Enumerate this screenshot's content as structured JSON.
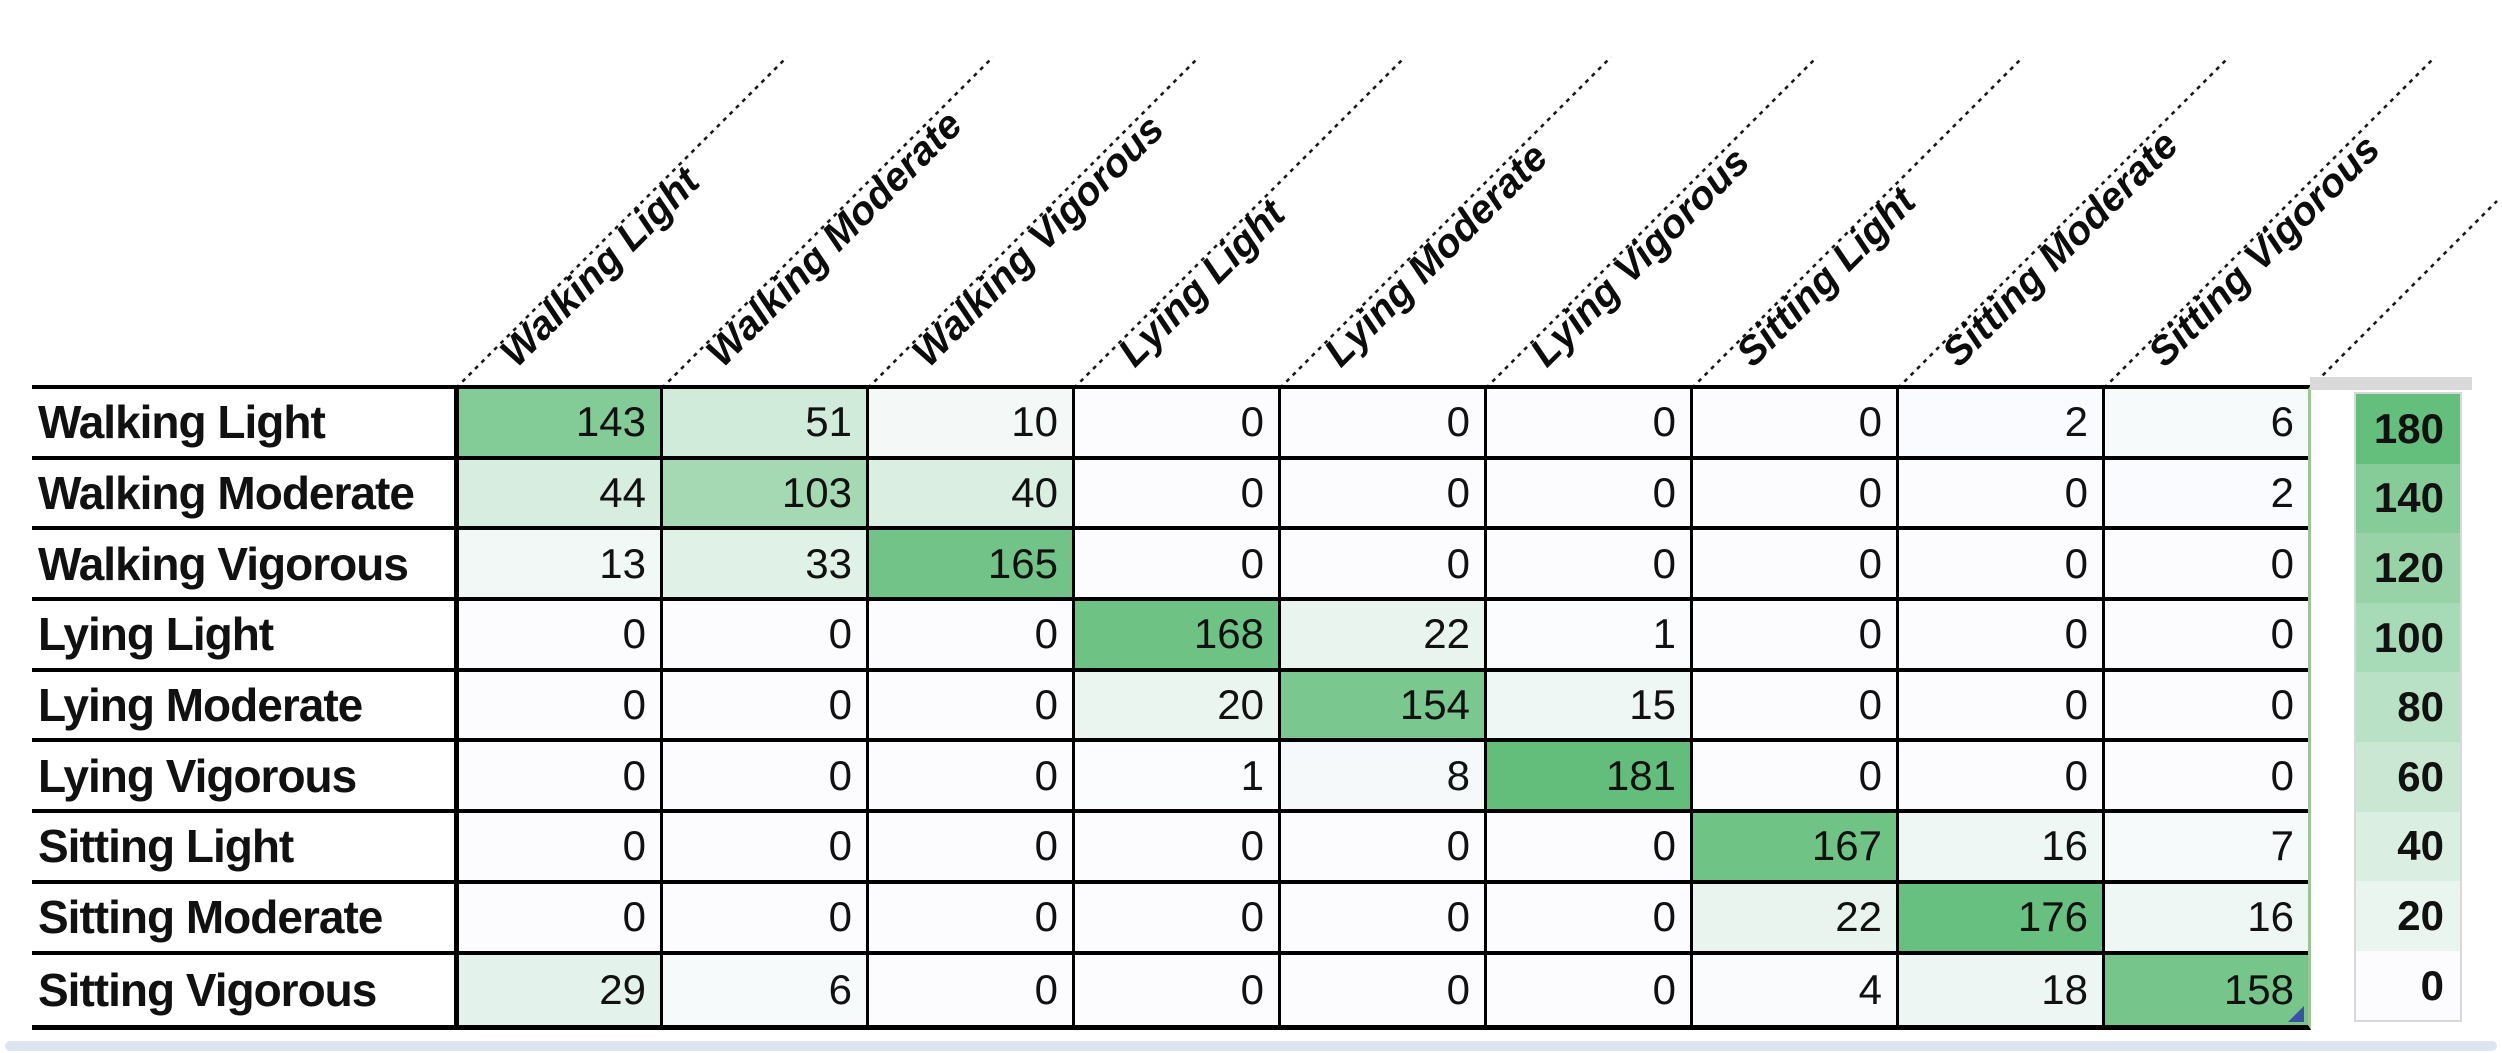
{
  "chart_data": {
    "type": "heatmap",
    "title": "",
    "x_categories": [
      "Walking Light",
      "Walking Moderate",
      "Walking Vigorous",
      "Lying Light",
      "Lying Moderate",
      "Lying Vigorous",
      "Sitting Light",
      "Sitting Moderate",
      "Sitting Vigorous"
    ],
    "y_categories": [
      "Walking Light",
      "Walking Moderate",
      "Walking Vigorous",
      "Lying Light",
      "Lying Moderate",
      "Lying Vigorous",
      "Sitting Light",
      "Sitting Moderate",
      "Sitting Vigorous"
    ],
    "values": [
      [
        143,
        51,
        10,
        0,
        0,
        0,
        0,
        2,
        6
      ],
      [
        44,
        103,
        40,
        0,
        0,
        0,
        0,
        0,
        2
      ],
      [
        13,
        33,
        165,
        0,
        0,
        0,
        0,
        0,
        0
      ],
      [
        0,
        0,
        0,
        168,
        22,
        1,
        0,
        0,
        0
      ],
      [
        0,
        0,
        0,
        20,
        154,
        15,
        0,
        0,
        0
      ],
      [
        0,
        0,
        0,
        1,
        8,
        181,
        0,
        0,
        0
      ],
      [
        0,
        0,
        0,
        0,
        0,
        0,
        167,
        16,
        7
      ],
      [
        0,
        0,
        0,
        0,
        0,
        0,
        22,
        176,
        16
      ],
      [
        29,
        6,
        0,
        0,
        0,
        0,
        4,
        18,
        158
      ]
    ],
    "color_scale": {
      "min": 0,
      "max": 181,
      "min_color": "#FCFCFF",
      "max_color": "#63BE7B"
    },
    "legend_ticks": [
      180,
      140,
      120,
      100,
      80,
      60,
      40,
      20,
      0
    ],
    "legend_position": "right",
    "grid": true
  },
  "colors": {
    "cell_border": "#000000",
    "table_right_border": "#9DC694",
    "legend_border": "#D8D8D8",
    "legend_cap": "#D9D9D9",
    "bottom_bar": "#DDE5F1",
    "corner_marker": "#3A52A3"
  }
}
